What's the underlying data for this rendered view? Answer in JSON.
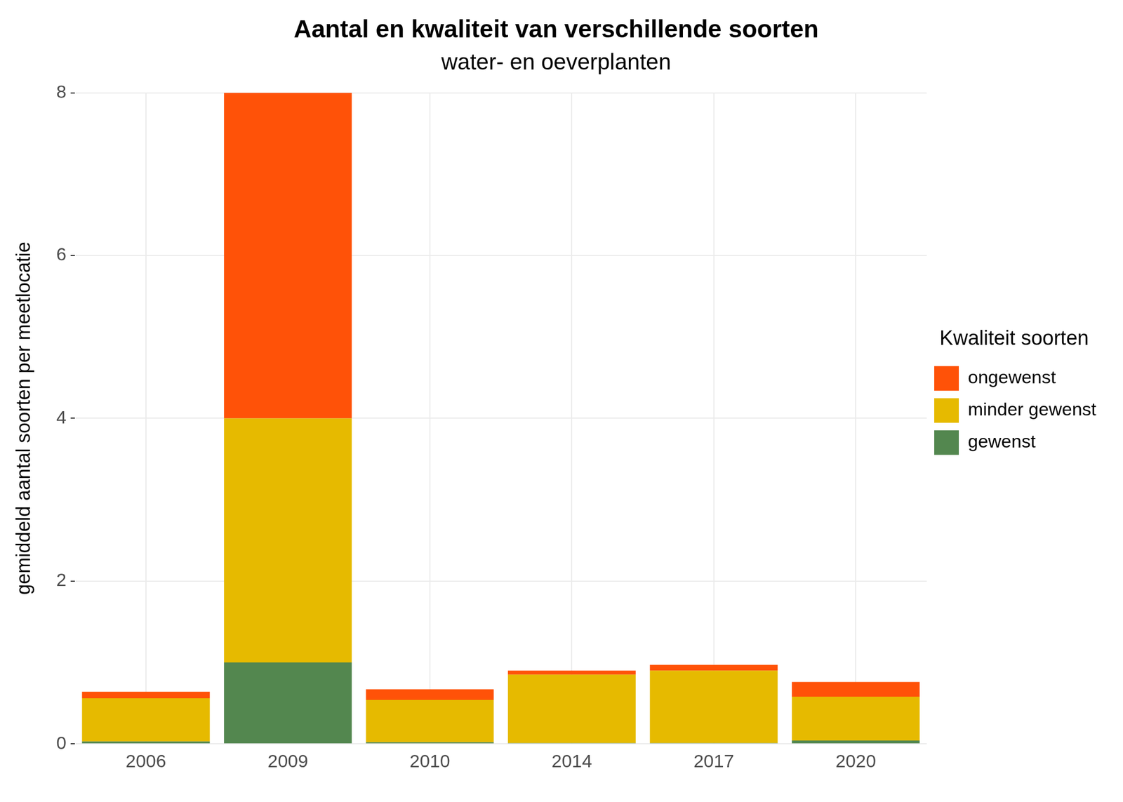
{
  "chart_data": {
    "type": "bar",
    "title": "Aantal en kwaliteit van verschillende soorten",
    "subtitle": "water- en oeverplanten",
    "y_label": "gemiddeld aantal soorten per meetlocatie",
    "legend_title": "Kwaliteit soorten",
    "categories": [
      "2006",
      "2009",
      "2010",
      "2014",
      "2017",
      "2020"
    ],
    "series": [
      {
        "name": "gewenst",
        "color": "#53874F",
        "values": [
          0.03,
          1,
          0.02,
          0.01,
          0.01,
          0.04
        ]
      },
      {
        "name": "minder gewenst",
        "color": "#E6BA00",
        "values": [
          0.53,
          3,
          0.52,
          0.84,
          0.89,
          0.54
        ]
      },
      {
        "name": "ongewenst",
        "color": "#FF5208",
        "values": [
          0.08,
          4,
          0.13,
          0.05,
          0.07,
          0.18
        ]
      }
    ],
    "ylim": [
      0,
      8
    ],
    "yticks": [
      0,
      2,
      4,
      6,
      8
    ],
    "stacked": true,
    "grid": true,
    "legend": "right"
  }
}
